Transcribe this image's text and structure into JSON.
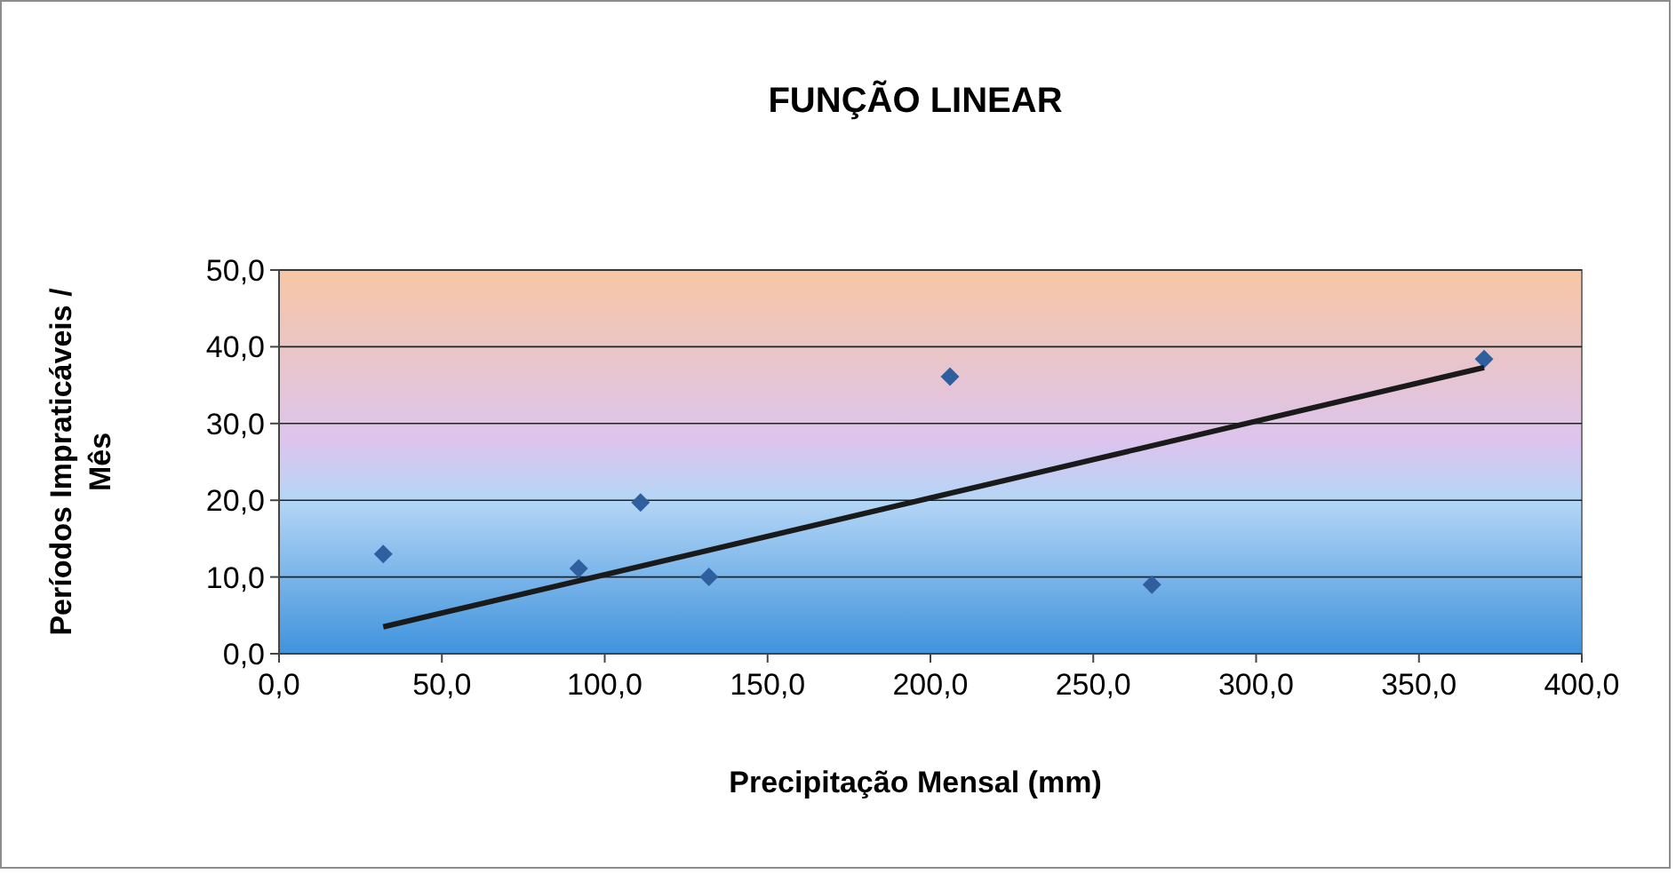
{
  "chart_data": {
    "type": "scatter",
    "title": "FUNÇÃO LINEAR",
    "xlabel": "Precipitação Mensal (mm)",
    "ylabel": "Períodos Impraticáveis / Mês",
    "xlim": [
      0,
      400
    ],
    "ylim": [
      0,
      50
    ],
    "xticks": [
      {
        "value": 0,
        "label": "0,0"
      },
      {
        "value": 50,
        "label": "50,0"
      },
      {
        "value": 100,
        "label": "100,0"
      },
      {
        "value": 150,
        "label": "150,0"
      },
      {
        "value": 200,
        "label": "200,0"
      },
      {
        "value": 250,
        "label": "250,0"
      },
      {
        "value": 300,
        "label": "300,0"
      },
      {
        "value": 350,
        "label": "350,0"
      },
      {
        "value": 400,
        "label": "400,0"
      }
    ],
    "yticks": [
      {
        "value": 0,
        "label": "0,0"
      },
      {
        "value": 10,
        "label": "10,0"
      },
      {
        "value": 20,
        "label": "20,0"
      },
      {
        "value": 30,
        "label": "30,0"
      },
      {
        "value": 40,
        "label": "40,0"
      },
      {
        "value": 50,
        "label": "50,0"
      }
    ],
    "grid": "y",
    "marker": "diamond",
    "series": [
      {
        "color": "#2f5f9e",
        "x": [
          32,
          92,
          111,
          132,
          206,
          268,
          370
        ],
        "values": [
          13,
          11.1,
          19.7,
          10,
          36.1,
          9,
          38.4
        ]
      },
      {
        "type": "line",
        "color": "#1a1a1a",
        "line_style": "solid",
        "marker": "none",
        "x": [
          32,
          370
        ],
        "values": [
          3.5,
          37.3
        ]
      }
    ]
  }
}
